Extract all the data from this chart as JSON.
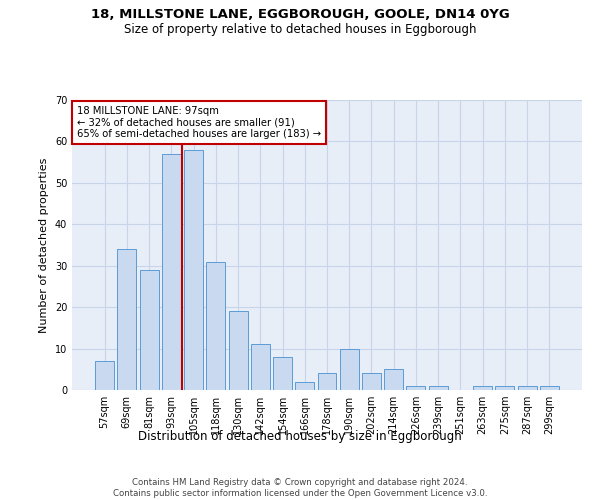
{
  "title1": "18, MILLSTONE LANE, EGGBOROUGH, GOOLE, DN14 0YG",
  "title2": "Size of property relative to detached houses in Eggborough",
  "xlabel": "Distribution of detached houses by size in Eggborough",
  "ylabel": "Number of detached properties",
  "categories": [
    "57sqm",
    "69sqm",
    "81sqm",
    "93sqm",
    "105sqm",
    "118sqm",
    "130sqm",
    "142sqm",
    "154sqm",
    "166sqm",
    "178sqm",
    "190sqm",
    "202sqm",
    "214sqm",
    "226sqm",
    "239sqm",
    "251sqm",
    "263sqm",
    "275sqm",
    "287sqm",
    "299sqm"
  ],
  "values": [
    7,
    34,
    29,
    57,
    58,
    31,
    19,
    11,
    8,
    2,
    4,
    10,
    4,
    5,
    1,
    1,
    0,
    1,
    1,
    1,
    1
  ],
  "bar_color": "#c9d9f0",
  "bar_edge_color": "#5b9bd5",
  "bar_width": 0.85,
  "vline_color": "#c00000",
  "annotation_line1": "18 MILLSTONE LANE: 97sqm",
  "annotation_line2": "← 32% of detached houses are smaller (91)",
  "annotation_line3": "65% of semi-detached houses are larger (183) →",
  "annotation_box_color": "#c00000",
  "ylim": [
    0,
    70
  ],
  "yticks": [
    0,
    10,
    20,
    30,
    40,
    50,
    60,
    70
  ],
  "grid_color": "#c8d4e8",
  "background_color": "#e8eef8",
  "footnote1": "Contains HM Land Registry data © Crown copyright and database right 2024.",
  "footnote2": "Contains public sector information licensed under the Open Government Licence v3.0."
}
